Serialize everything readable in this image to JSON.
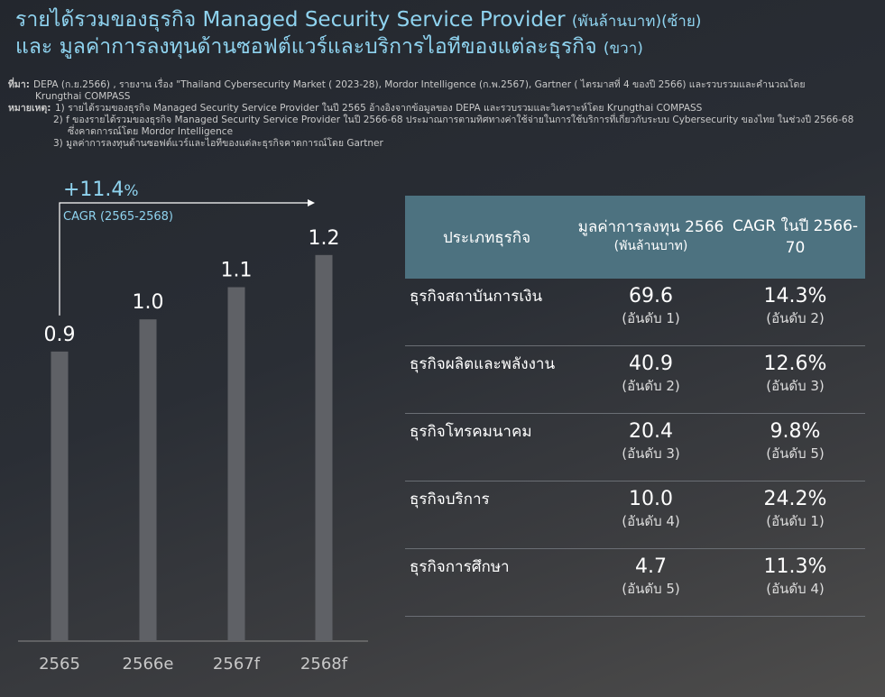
{
  "header": {
    "title_line1": "รายได้รวมของธุรกิจ Managed Security Service Provider",
    "title_line1_unit": "(พันล้านบาท)(ซ้าย)",
    "title_line2": "และ มูลค่าการลงทุนด้านซอฟต์แวร์และบริการไอทีของแต่ละธุรกิจ",
    "title_line2_unit": "(ขวา)"
  },
  "notes": {
    "source_label": "ที่มา:",
    "source_text": "DEPA (ก.ย.2566) , รายงาน เรื่อง \"Thailand Cybersecurity Market ( 2023-28), Mordor Intelligence (ก.พ.2567), Gartner ( ไตรมาสที่ 4 ของปี 2566) และรวบรวมและคำนวณโดย",
    "source_text_2": "Krungthai COMPASS",
    "remark_label": "หมายเหตุ:",
    "remark_1": "1) รายได้รวมของธุรกิจ Managed Security Service Provider ในปี 2565 อ้างอิงจากข้อมูลของ DEPA และรวบรวมและวิเคราะห์โดย Krungthai COMPASS",
    "remark_2": "2) f ของรายได้รวมของธุรกิจ Managed Security Service Provider ในปี 2566-68 ประมาณการตามทิศทางค่าใช้จ่ายในการใช้บริการที่เกี่ยวกับระบบ Cybersecurity ของไทย ในช่วงปี 2566-68",
    "remark_2b": "ซึ่งคาดการณ์โดย Mordor Intelligence",
    "remark_3": "3) มูลค่าการลงทุนด้านซอฟต์แวร์และไอทีของแต่ละธุรกิจคาดการณ์โดย Gartner"
  },
  "chart_data": {
    "type": "bar",
    "categories": [
      "2565",
      "2566e",
      "2567f",
      "2568f"
    ],
    "values": [
      0.9,
      1.0,
      1.1,
      1.2
    ],
    "value_labels": [
      "0.9",
      "1.0",
      "1.1",
      "1.2"
    ],
    "ylim": [
      0,
      1.32
    ],
    "annotation_value": "+11.4",
    "annotation_unit": "%",
    "annotation_label": "CAGR (2565-2568)",
    "colors": {
      "bar": "#5f6166",
      "annotation": "#8fd3ef",
      "text": "#ffffff",
      "tick": "#c8c8c8"
    }
  },
  "table": {
    "headers": {
      "type": "ประเภทธุรกิจ",
      "invest": "มูลค่าการลงทุน 2566",
      "invest_unit": "(พันล้านบาท)",
      "cagr": "CAGR ในปี 2566-70"
    },
    "rows": [
      {
        "name": "ธุรกิจสถาบันการเงิน",
        "invest": "69.6",
        "invest_rank": "(อันดับ 1)",
        "cagr": "14.3%",
        "cagr_rank": "(อันดับ 2)"
      },
      {
        "name": "ธุรกิจผลิตและพลังงาน",
        "invest": "40.9",
        "invest_rank": "(อันดับ 2)",
        "cagr": "12.6%",
        "cagr_rank": "(อันดับ 3)"
      },
      {
        "name": "ธุรกิจโทรคมนาคม",
        "invest": "20.4",
        "invest_rank": "(อันดับ 3)",
        "cagr": "9.8%",
        "cagr_rank": "(อันดับ 5)"
      },
      {
        "name": "ธุรกิจบริการ",
        "invest": "10.0",
        "invest_rank": "(อันดับ 4)",
        "cagr": "24.2%",
        "cagr_rank": "(อันดับ 1)"
      },
      {
        "name": "ธุรกิจการศึกษา",
        "invest": "4.7",
        "invest_rank": "(อันดับ 5)",
        "cagr": "11.3%",
        "cagr_rank": "(อันดับ 4)"
      }
    ],
    "colors": {
      "header_bg": "#4d7280",
      "divider": "#6a6e74"
    }
  }
}
